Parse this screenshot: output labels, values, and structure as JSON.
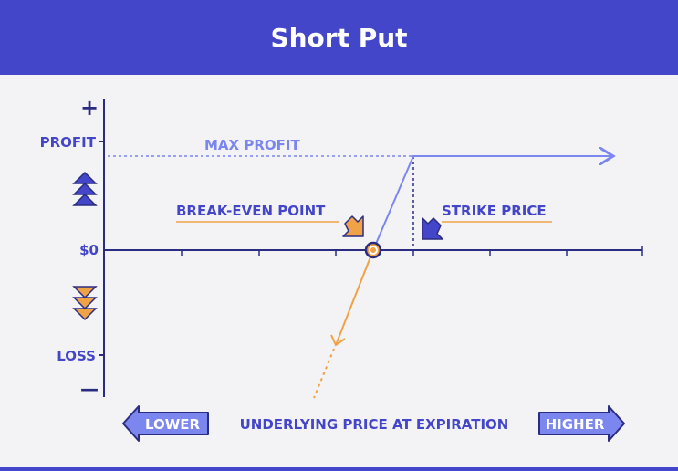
{
  "title": "Short Put",
  "y_axis": {
    "top": "+",
    "bottom": "—",
    "profit": "PROFIT",
    "zero": "$0",
    "loss": "LOSS"
  },
  "labels": {
    "max_profit": "MAX PROFIT",
    "break_even": "BREAK-EVEN POINT",
    "strike": "STRIKE PRICE"
  },
  "x_axis": {
    "lower": "LOWER",
    "title": "UNDERLYING PRICE AT EXPIRATION",
    "higher": "HIGHER"
  },
  "colors": {
    "header": "#4346c8",
    "axis": "#2a2c82",
    "profit_line": "#7b86ee",
    "loss_line": "#f0a346",
    "accent": "#4346c8"
  }
}
